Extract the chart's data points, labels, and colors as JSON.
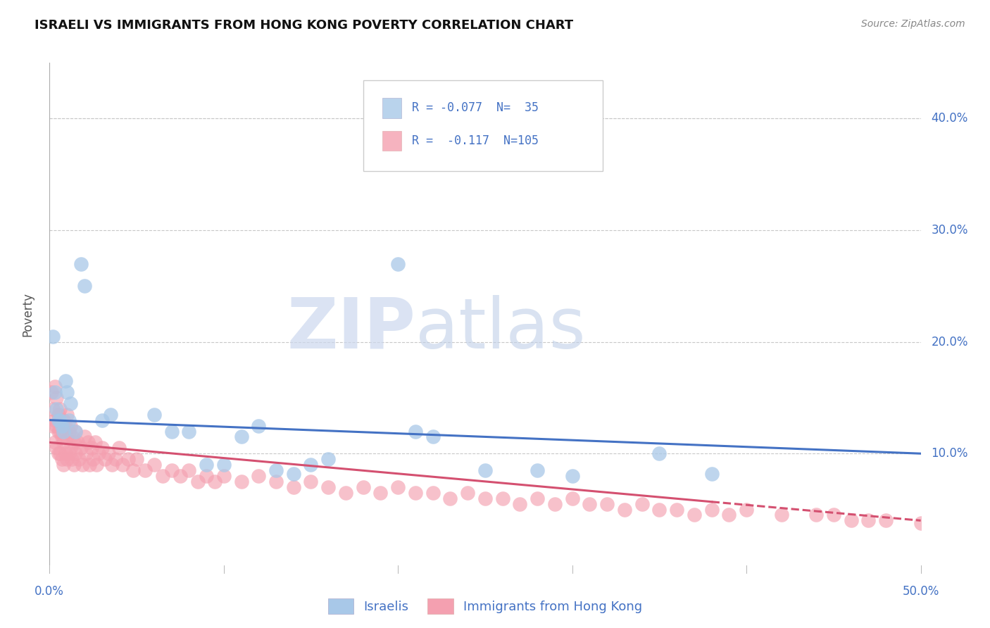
{
  "title": "ISRAELI VS IMMIGRANTS FROM HONG KONG POVERTY CORRELATION CHART",
  "source": "Source: ZipAtlas.com",
  "ylabel": "Poverty",
  "right_yticks": [
    "40.0%",
    "30.0%",
    "20.0%",
    "10.0%"
  ],
  "right_ytick_vals": [
    0.4,
    0.3,
    0.2,
    0.1
  ],
  "israelis_color": "#a8c8e8",
  "israelis_edge": "#7aaddb",
  "hk_color": "#f4a0b0",
  "hk_edge": "#e06070",
  "blue_line_color": "#4472c4",
  "pink_line_color": "#d45070",
  "watermark_zip": "#c8d8ec",
  "watermark_atlas": "#b8cfe8",
  "grid_color": "#c8c8c8",
  "xlim": [
    0.0,
    0.5
  ],
  "ylim": [
    0.0,
    0.45
  ],
  "isr_line_x0": 0.0,
  "isr_line_y0": 0.13,
  "isr_line_x1": 0.5,
  "isr_line_y1": 0.1,
  "hk_line_x0": 0.0,
  "hk_line_y0": 0.11,
  "hk_line_x1_solid": 0.38,
  "hk_line_x1_dash": 0.5,
  "hk_line_y1": 0.04,
  "israelis_x": [
    0.002,
    0.003,
    0.004,
    0.005,
    0.006,
    0.007,
    0.008,
    0.009,
    0.01,
    0.011,
    0.012,
    0.015,
    0.018,
    0.02,
    0.03,
    0.035,
    0.06,
    0.07,
    0.08,
    0.09,
    0.1,
    0.11,
    0.12,
    0.13,
    0.14,
    0.15,
    0.16,
    0.2,
    0.21,
    0.22,
    0.25,
    0.28,
    0.3,
    0.35,
    0.38
  ],
  "israelis_y": [
    0.205,
    0.155,
    0.14,
    0.13,
    0.13,
    0.125,
    0.12,
    0.165,
    0.155,
    0.13,
    0.145,
    0.12,
    0.27,
    0.25,
    0.13,
    0.135,
    0.135,
    0.12,
    0.12,
    0.09,
    0.09,
    0.115,
    0.125,
    0.085,
    0.082,
    0.09,
    0.095,
    0.27,
    0.12,
    0.115,
    0.085,
    0.085,
    0.08,
    0.1,
    0.082
  ],
  "hk_x": [
    0.001,
    0.002,
    0.002,
    0.003,
    0.003,
    0.003,
    0.004,
    0.004,
    0.004,
    0.005,
    0.005,
    0.005,
    0.006,
    0.006,
    0.006,
    0.007,
    0.007,
    0.008,
    0.008,
    0.008,
    0.009,
    0.009,
    0.01,
    0.01,
    0.01,
    0.011,
    0.011,
    0.012,
    0.012,
    0.013,
    0.013,
    0.014,
    0.014,
    0.015,
    0.015,
    0.016,
    0.017,
    0.018,
    0.019,
    0.02,
    0.021,
    0.022,
    0.023,
    0.024,
    0.025,
    0.026,
    0.027,
    0.028,
    0.03,
    0.032,
    0.034,
    0.036,
    0.038,
    0.04,
    0.042,
    0.045,
    0.048,
    0.05,
    0.055,
    0.06,
    0.065,
    0.07,
    0.075,
    0.08,
    0.085,
    0.09,
    0.095,
    0.1,
    0.11,
    0.12,
    0.13,
    0.14,
    0.15,
    0.16,
    0.17,
    0.18,
    0.19,
    0.2,
    0.21,
    0.22,
    0.23,
    0.24,
    0.25,
    0.26,
    0.27,
    0.28,
    0.29,
    0.3,
    0.31,
    0.32,
    0.33,
    0.34,
    0.35,
    0.36,
    0.37,
    0.38,
    0.39,
    0.4,
    0.42,
    0.44,
    0.45,
    0.46,
    0.47,
    0.48,
    0.5
  ],
  "hk_y": [
    0.155,
    0.14,
    0.125,
    0.16,
    0.13,
    0.11,
    0.15,
    0.125,
    0.105,
    0.135,
    0.12,
    0.1,
    0.14,
    0.12,
    0.1,
    0.115,
    0.095,
    0.13,
    0.11,
    0.09,
    0.125,
    0.1,
    0.135,
    0.115,
    0.095,
    0.12,
    0.1,
    0.125,
    0.105,
    0.115,
    0.095,
    0.11,
    0.09,
    0.12,
    0.1,
    0.11,
    0.095,
    0.105,
    0.09,
    0.115,
    0.1,
    0.11,
    0.09,
    0.105,
    0.095,
    0.11,
    0.09,
    0.1,
    0.105,
    0.095,
    0.1,
    0.09,
    0.095,
    0.105,
    0.09,
    0.095,
    0.085,
    0.095,
    0.085,
    0.09,
    0.08,
    0.085,
    0.08,
    0.085,
    0.075,
    0.08,
    0.075,
    0.08,
    0.075,
    0.08,
    0.075,
    0.07,
    0.075,
    0.07,
    0.065,
    0.07,
    0.065,
    0.07,
    0.065,
    0.065,
    0.06,
    0.065,
    0.06,
    0.06,
    0.055,
    0.06,
    0.055,
    0.06,
    0.055,
    0.055,
    0.05,
    0.055,
    0.05,
    0.05,
    0.045,
    0.05,
    0.045,
    0.05,
    0.045,
    0.045,
    0.045,
    0.04,
    0.04,
    0.04,
    0.038
  ],
  "background_color": "#ffffff"
}
